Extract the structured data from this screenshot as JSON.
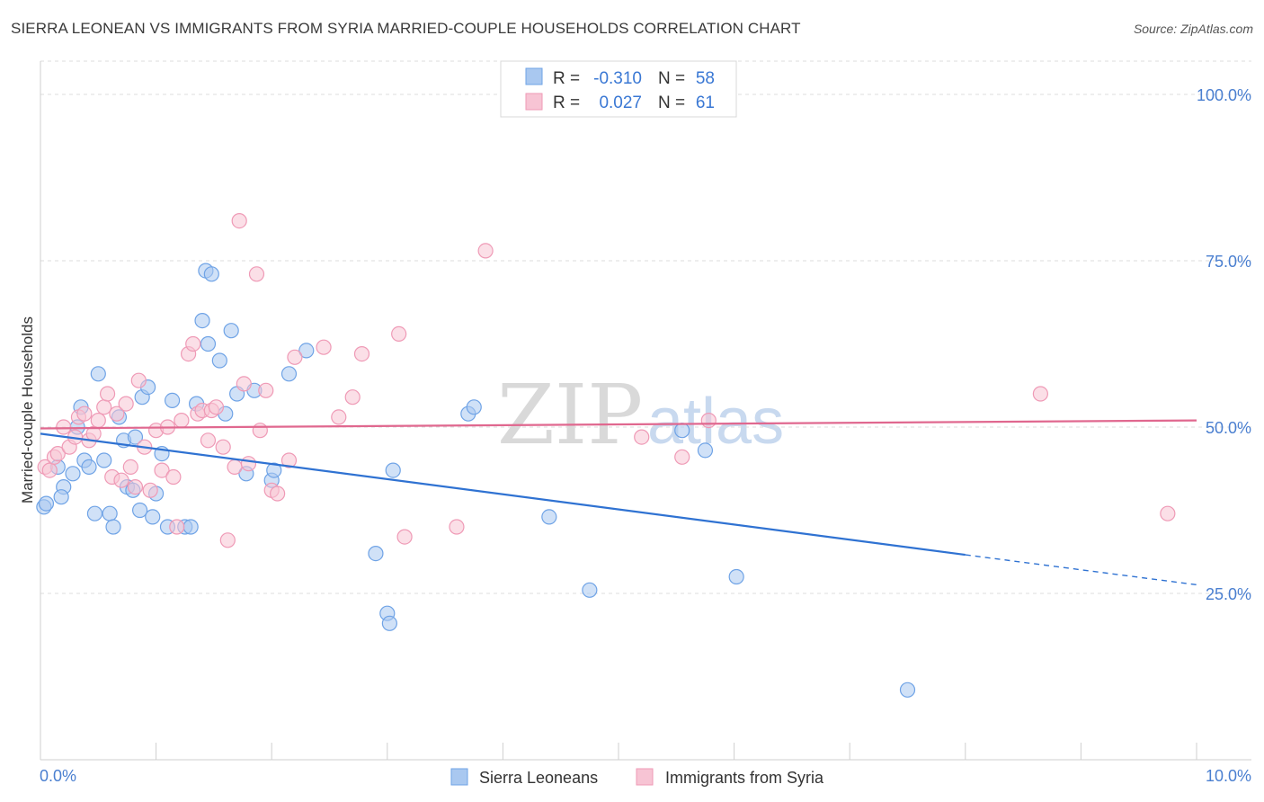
{
  "title": "SIERRA LEONEAN VS IMMIGRANTS FROM SYRIA MARRIED-COUPLE HOUSEHOLDS CORRELATION CHART",
  "source": "Source: ZipAtlas.com",
  "watermark": {
    "zip": "ZIP",
    "atlas": "atlas"
  },
  "chart_data": {
    "type": "scatter",
    "title": "SIERRA LEONEAN VS IMMIGRANTS FROM SYRIA MARRIED-COUPLE HOUSEHOLDS CORRELATION CHART",
    "xlabel": "",
    "ylabel": "Married-couple Households",
    "xlim": [
      0,
      10
    ],
    "ylim": [
      0,
      105
    ],
    "x_tick_labels": {
      "left": "0.0%",
      "right": "10.0%"
    },
    "y_ticks": [
      {
        "value": 25,
        "label": "25.0%"
      },
      {
        "value": 50,
        "label": "50.0%"
      },
      {
        "value": 75,
        "label": "75.0%"
      },
      {
        "value": 100,
        "label": "100.0%"
      }
    ],
    "grid": true,
    "legend_position": "top-center",
    "series": [
      {
        "name": "Sierra Leoneans",
        "color": "#6fa3e6",
        "fill": "#a9c8f0",
        "line_color": "#2f72d2",
        "R": "-0.310",
        "N": "58",
        "trend": {
          "x_start": 0.0,
          "y_start": 49.0,
          "x_solid_end": 8.0,
          "y_solid_end": 30.8,
          "x_end": 10.0,
          "y_end": 26.3
        },
        "points": [
          [
            0.03,
            38.0
          ],
          [
            0.05,
            38.5
          ],
          [
            0.15,
            44.0
          ],
          [
            0.2,
            41.0
          ],
          [
            0.18,
            39.5
          ],
          [
            0.28,
            43.0
          ],
          [
            0.32,
            50.0
          ],
          [
            0.35,
            53.0
          ],
          [
            0.38,
            45.0
          ],
          [
            0.42,
            44.0
          ],
          [
            0.47,
            37.0
          ],
          [
            0.5,
            58.0
          ],
          [
            0.55,
            45.0
          ],
          [
            0.6,
            37.0
          ],
          [
            0.63,
            35.0
          ],
          [
            0.68,
            51.5
          ],
          [
            0.72,
            48.0
          ],
          [
            0.75,
            41.0
          ],
          [
            0.8,
            40.5
          ],
          [
            0.82,
            48.5
          ],
          [
            0.86,
            37.5
          ],
          [
            0.88,
            54.5
          ],
          [
            0.93,
            56.0
          ],
          [
            0.97,
            36.5
          ],
          [
            1.0,
            40.0
          ],
          [
            1.05,
            46.0
          ],
          [
            1.1,
            35.0
          ],
          [
            1.14,
            54.0
          ],
          [
            1.25,
            35.0
          ],
          [
            1.3,
            35.0
          ],
          [
            1.35,
            53.5
          ],
          [
            1.4,
            66.0
          ],
          [
            1.45,
            62.5
          ],
          [
            1.43,
            73.5
          ],
          [
            1.48,
            73.0
          ],
          [
            1.55,
            60.0
          ],
          [
            1.6,
            52.0
          ],
          [
            1.65,
            64.5
          ],
          [
            1.7,
            55.0
          ],
          [
            1.78,
            43.0
          ],
          [
            1.85,
            55.5
          ],
          [
            2.0,
            42.0
          ],
          [
            2.02,
            43.5
          ],
          [
            2.15,
            58.0
          ],
          [
            2.3,
            61.5
          ],
          [
            2.9,
            31.0
          ],
          [
            3.0,
            22.0
          ],
          [
            3.02,
            20.5
          ],
          [
            3.05,
            43.5
          ],
          [
            3.7,
            52.0
          ],
          [
            3.75,
            53.0
          ],
          [
            4.4,
            36.5
          ],
          [
            4.75,
            25.5
          ],
          [
            5.55,
            49.5
          ],
          [
            5.75,
            46.5
          ],
          [
            6.02,
            27.5
          ],
          [
            7.5,
            10.5
          ]
        ]
      },
      {
        "name": "Immigrants from Syria",
        "color": "#ef9ab6",
        "fill": "#f7c4d4",
        "line_color": "#e0688f",
        "R": "0.027",
        "N": "61",
        "trend": {
          "x_start": 0.0,
          "y_start": 49.8,
          "x_solid_end": 10.0,
          "y_solid_end": 51.0,
          "x_end": 10.0,
          "y_end": 51.0
        },
        "points": [
          [
            0.04,
            44.0
          ],
          [
            0.08,
            43.5
          ],
          [
            0.12,
            45.5
          ],
          [
            0.15,
            46.0
          ],
          [
            0.2,
            50.0
          ],
          [
            0.25,
            47.0
          ],
          [
            0.3,
            48.5
          ],
          [
            0.33,
            51.5
          ],
          [
            0.38,
            52.0
          ],
          [
            0.42,
            48.0
          ],
          [
            0.46,
            49.0
          ],
          [
            0.5,
            51.0
          ],
          [
            0.55,
            53.0
          ],
          [
            0.58,
            55.0
          ],
          [
            0.62,
            42.5
          ],
          [
            0.66,
            52.0
          ],
          [
            0.7,
            42.0
          ],
          [
            0.74,
            53.5
          ],
          [
            0.78,
            44.0
          ],
          [
            0.82,
            41.0
          ],
          [
            0.85,
            57.0
          ],
          [
            0.9,
            47.0
          ],
          [
            0.95,
            40.5
          ],
          [
            1.0,
            49.5
          ],
          [
            1.05,
            43.5
          ],
          [
            1.1,
            50.0
          ],
          [
            1.15,
            42.5
          ],
          [
            1.18,
            35.0
          ],
          [
            1.22,
            51.0
          ],
          [
            1.28,
            61.0
          ],
          [
            1.32,
            62.5
          ],
          [
            1.36,
            52.0
          ],
          [
            1.4,
            52.5
          ],
          [
            1.45,
            48.0
          ],
          [
            1.48,
            52.5
          ],
          [
            1.52,
            53.0
          ],
          [
            1.58,
            47.0
          ],
          [
            1.62,
            33.0
          ],
          [
            1.68,
            44.0
          ],
          [
            1.72,
            81.0
          ],
          [
            1.76,
            56.5
          ],
          [
            1.8,
            44.5
          ],
          [
            1.87,
            73.0
          ],
          [
            1.9,
            49.5
          ],
          [
            1.95,
            55.5
          ],
          [
            2.0,
            40.5
          ],
          [
            2.05,
            40.0
          ],
          [
            2.15,
            45.0
          ],
          [
            2.2,
            60.5
          ],
          [
            2.45,
            62.0
          ],
          [
            2.58,
            51.5
          ],
          [
            2.7,
            54.5
          ],
          [
            2.78,
            61.0
          ],
          [
            3.1,
            64.0
          ],
          [
            3.15,
            33.5
          ],
          [
            3.6,
            35.0
          ],
          [
            3.85,
            76.5
          ],
          [
            5.2,
            48.5
          ],
          [
            5.55,
            45.5
          ],
          [
            5.78,
            51.0
          ],
          [
            8.65,
            55.0
          ],
          [
            9.75,
            37.0
          ]
        ]
      }
    ]
  },
  "legend": {
    "r_label": "R =",
    "n_label": "N =",
    "bottom": [
      "Sierra Leoneans",
      "Immigrants from Syria"
    ]
  }
}
